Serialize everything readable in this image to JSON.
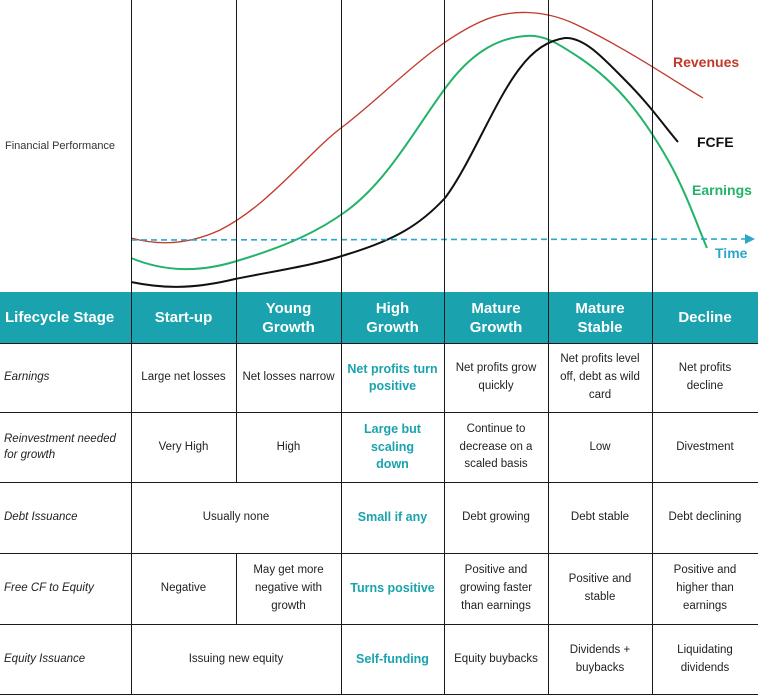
{
  "chart": {
    "y_label": "Financial Performance",
    "x_label": "Time",
    "colors": {
      "revenues": "#c0392b",
      "fcfe": "#111111",
      "earnings": "#22b36a",
      "time": "#2aa7c9",
      "accent": "#1aa3ae"
    },
    "series": [
      {
        "name": "Revenues",
        "key": "revenues"
      },
      {
        "name": "FCFE",
        "key": "fcfe"
      },
      {
        "name": "Earnings",
        "key": "earnings"
      }
    ]
  },
  "table": {
    "header_label": "Lifecycle Stage",
    "stages": [
      "Start-up",
      "Young Growth",
      "High Growth",
      "Mature Growth",
      "Mature Stable",
      "Decline"
    ],
    "rows": [
      {
        "label": "Earnings",
        "cells": [
          "Large net losses",
          "Net losses narrow",
          "Net profits turn positive",
          "Net profits grow quickly",
          "Net profits level off, debt as wild card",
          "Net profits decline"
        ]
      },
      {
        "label": "Reinvestment needed for growth",
        "cells": [
          "Very High",
          "High",
          "Large but scaling down",
          "Continue to decrease on a scaled basis",
          "Low",
          "Divestment"
        ]
      },
      {
        "label": "Debt Issuance",
        "cells": [
          "Usually none",
          "Small if any",
          "Debt growing",
          "Debt stable",
          "Debt declining"
        ]
      },
      {
        "label": "Free CF to Equity",
        "cells": [
          "Negative",
          "May get more negative with growth",
          "Turns positive",
          "Positive and growing faster than earnings",
          "Positive and stable",
          "Positive and higher than earnings"
        ]
      },
      {
        "label": "Equity Issuance",
        "cells": [
          "Issuing new equity",
          "Self-funding",
          "Equity buybacks",
          "Dividends + buybacks",
          "Liquidating dividends"
        ]
      }
    ]
  }
}
